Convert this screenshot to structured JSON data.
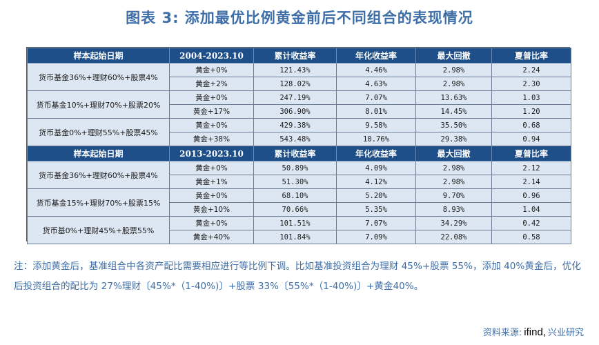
{
  "title": "图表 3:  添加最优比例黄金前后不同组合的表现情况",
  "sections": [
    {
      "header": [
        "样本起始日期",
        "2004-2023.10",
        "累计收益率",
        "年化收益率",
        "最大回撤",
        "夏普比率"
      ],
      "groups": [
        {
          "combo": "货币基金36%+理财60%+股票4%",
          "rows": [
            [
              "黄金+0%",
              "121.43%",
              "4.46%",
              "2.98%",
              "2.24"
            ],
            [
              "黄金+2%",
              "128.02%",
              "4.63%",
              "2.98%",
              "2.30"
            ]
          ]
        },
        {
          "combo": "货币基金10%+理财70%+股票20%",
          "rows": [
            [
              "黄金+0%",
              "247.19%",
              "7.07%",
              "13.63%",
              "1.03"
            ],
            [
              "黄金+17%",
              "306.90%",
              "8.01%",
              "14.45%",
              "1.20"
            ]
          ]
        },
        {
          "combo": "货币基金0%+理财55%+股票45%",
          "rows": [
            [
              "黄金+0%",
              "429.38%",
              "9.58%",
              "35.50%",
              "0.68"
            ],
            [
              "黄金+38%",
              "543.48%",
              "10.76%",
              "29.38%",
              "0.94"
            ]
          ]
        }
      ]
    },
    {
      "header": [
        "样本起始日期",
        "2013-2023.10",
        "累计收益率",
        "年化收益率",
        "最大回撤",
        "夏普比率"
      ],
      "groups": [
        {
          "combo": "货币基金36%+理财60%+股票4%",
          "rows": [
            [
              "黄金+0%",
              "50.89%",
              "4.09%",
              "2.98%",
              "2.12"
            ],
            [
              "黄金+1%",
              "51.30%",
              "4.12%",
              "2.98%",
              "2.14"
            ]
          ]
        },
        {
          "combo": "货币基金15%+理财70%+股票15%",
          "rows": [
            [
              "黄金+0%",
              "68.10%",
              "5.20%",
              "9.70%",
              "0.96"
            ],
            [
              "黄金+10%",
              "70.66%",
              "5.35%",
              "8.93%",
              "1.04"
            ]
          ]
        },
        {
          "combo": "货币基0%+理财45%+股票55%",
          "rows": [
            [
              "黄金+0%",
              "101.51%",
              "7.07%",
              "34.29%",
              "0.42"
            ],
            [
              "黄金+40%",
              "101.84%",
              "7.09%",
              "22.08%",
              "0.58"
            ]
          ]
        }
      ]
    }
  ],
  "note": "注：添加黄金后，基准组合中各资产配比需要相应进行等比例下调。比如基准投资组合为理财 45%+股票 55%，添加 40%黄金后，优化后投资组合的配比为 27%理财〔45%*（1-40%)〕+股票 33%〔55%*（1-40%)〕+黄金40%。",
  "source": {
    "prefix": "资料来源:",
    "ifind": "ifind,",
    "suffix": "兴业研究"
  }
}
